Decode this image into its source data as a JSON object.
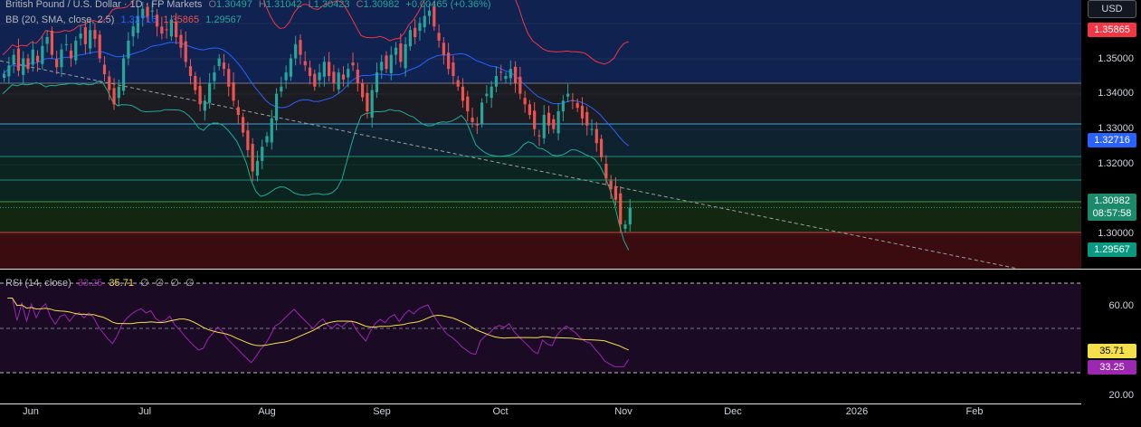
{
  "symbol": {
    "title": "British Pound / U.S. Dollar · 1D · FP Markets",
    "open_label": "O",
    "open": "1.30497",
    "high_label": "H",
    "high": "1.31042",
    "low_label": "L",
    "low": "1.30423",
    "close_label": "C",
    "close": "1.30982",
    "change": "+0.00465 (+0.36%)"
  },
  "bb": {
    "label": "BB (20, SMA, close, 2.5)",
    "basis": "1.32716",
    "upper": "1.35865",
    "lower": "1.29567"
  },
  "rsi": {
    "label": "RSI (14, close)",
    "value": "33.25",
    "ma": "35.71",
    "extras": [
      "∅",
      "∅",
      "∅",
      "∅"
    ]
  },
  "price_axis": {
    "currency": "USD",
    "ticks": [
      "1.35000",
      "1.34000",
      "1.33000",
      "1.32000",
      "1.30000"
    ],
    "upper_tag": "1.35865",
    "basis_tag": "1.32716",
    "price_tag": "1.30982",
    "countdown": "08:57:58",
    "lower_tag": "1.29567"
  },
  "rsi_axis": {
    "ticks": [
      "60.00",
      "20.00"
    ],
    "ma_tag": "35.71",
    "value_tag": "33.25"
  },
  "time_axis": [
    "Jun",
    "Jul",
    "Aug",
    "Sep",
    "Oct",
    "Nov",
    "Dec",
    "2026",
    "Feb"
  ],
  "colors": {
    "up": "#26a69a",
    "down": "#ef5350",
    "bb_basis": "#2962ff",
    "bb_upper": "#f23645",
    "bb_lower": "#22ab94",
    "rsi": "#9c27b0",
    "rsi_ma": "#f5e04c"
  },
  "chart_data": {
    "type": "candlestick",
    "ylim": [
      1.2925,
      1.3685
    ],
    "closes": [
      1.3475,
      1.35,
      1.353,
      1.3485,
      1.352,
      1.349,
      1.3545,
      1.351,
      1.3555,
      1.358,
      1.353,
      1.3495,
      1.3545,
      1.356,
      1.352,
      1.357,
      1.359,
      1.356,
      1.36,
      1.3575,
      1.352,
      1.3475,
      1.343,
      1.339,
      1.344,
      1.352,
      1.357,
      1.361,
      1.364,
      1.366,
      1.3635,
      1.3655,
      1.361,
      1.359,
      1.36,
      1.363,
      1.358,
      1.355,
      1.351,
      1.347,
      1.343,
      1.339,
      1.34,
      1.345,
      1.348,
      1.352,
      1.349,
      1.344,
      1.34,
      1.336,
      1.331,
      1.326,
      1.32,
      1.323,
      1.327,
      1.33,
      1.335,
      1.342,
      1.344,
      1.348,
      1.352,
      1.356,
      1.353,
      1.35,
      1.347,
      1.344,
      1.348,
      1.351,
      1.347,
      1.345,
      1.348,
      1.346,
      1.349,
      1.35,
      1.345,
      1.341,
      1.337,
      1.343,
      1.348,
      1.351,
      1.349,
      1.353,
      1.355,
      1.351,
      1.356,
      1.36,
      1.358,
      1.362,
      1.364,
      1.3655,
      1.361,
      1.357,
      1.353,
      1.349,
      1.347,
      1.344,
      1.34,
      1.337,
      1.334,
      1.333,
      1.3395,
      1.342,
      1.344,
      1.347,
      1.348,
      1.347,
      1.349,
      1.345,
      1.342,
      1.339,
      1.336,
      1.332,
      1.33,
      1.336,
      1.333,
      1.332,
      1.337,
      1.34,
      1.342,
      1.34,
      1.338,
      1.335,
      1.333,
      1.332,
      1.328,
      1.324,
      1.318,
      1.315,
      1.312,
      1.305,
      1.305,
      1.3098
    ]
  }
}
